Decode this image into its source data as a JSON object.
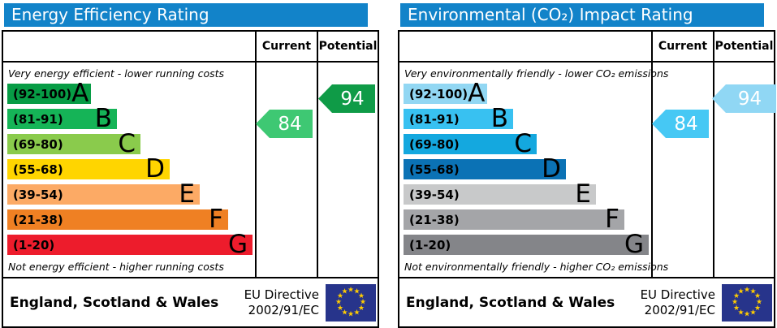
{
  "chart_data": [
    {
      "type": "bar",
      "variant": "epc-rating-scale",
      "title": "Energy Efficiency Rating",
      "header_bg": "#1283c9",
      "top_note": "Very energy efficient - lower running costs",
      "bottom_note": "Not energy efficient - higher running costs",
      "columns": [
        "Current",
        "Potential"
      ],
      "categories": [
        "A",
        "B",
        "C",
        "D",
        "E",
        "F",
        "G"
      ],
      "bands": [
        {
          "letter": "A",
          "range_label": "(92-100)",
          "min": 92,
          "max": 100,
          "color": "#079c45",
          "width_px": "103px"
        },
        {
          "letter": "B",
          "range_label": "(81-91)",
          "min": 81,
          "max": 91,
          "color": "#15b457",
          "width_px": "135px"
        },
        {
          "letter": "C",
          "range_label": "(69-80)",
          "min": 69,
          "max": 80,
          "color": "#8acb4c",
          "width_px": "164px"
        },
        {
          "letter": "D",
          "range_label": "(55-68)",
          "min": 55,
          "max": 68,
          "color": "#ffd500",
          "width_px": "200px"
        },
        {
          "letter": "E",
          "range_label": "(39-54)",
          "min": 39,
          "max": 54,
          "color": "#fcaa65",
          "width_px": "237px"
        },
        {
          "letter": "F",
          "range_label": "(21-38)",
          "min": 21,
          "max": 38,
          "color": "#ef8023",
          "width_px": "272px"
        },
        {
          "letter": "G",
          "range_label": "(1-20)",
          "min": 1,
          "max": 20,
          "color": "#ed1c2c",
          "width_px": "302px"
        }
      ],
      "current": {
        "value": 84,
        "band": "B",
        "row": 1,
        "color": "#3ec873"
      },
      "potential": {
        "value": 94,
        "band": "A",
        "row": 0,
        "color": "#0f9b47"
      },
      "footer": {
        "region": "England, Scotland & Wales",
        "directive_line1": "EU Directive",
        "directive_line2": "2002/91/EC",
        "flag": "eu-flag"
      }
    },
    {
      "type": "bar",
      "variant": "epc-rating-scale",
      "title": "Environmental (CO₂) Impact Rating",
      "header_bg": "#1283c9",
      "top_note": "Very environmentally friendly - lower CO₂ emissions",
      "bottom_note": "Not environmentally friendly - higher CO₂ emissions",
      "columns": [
        "Current",
        "Potential"
      ],
      "categories": [
        "A",
        "B",
        "C",
        "D",
        "E",
        "F",
        "G"
      ],
      "bands": [
        {
          "letter": "A",
          "range_label": "(92-100)",
          "min": 92,
          "max": 100,
          "color": "#92d7f3",
          "width_px": "103px"
        },
        {
          "letter": "B",
          "range_label": "(81-91)",
          "min": 81,
          "max": 91,
          "color": "#38c1f1",
          "width_px": "135px"
        },
        {
          "letter": "C",
          "range_label": "(69-80)",
          "min": 69,
          "max": 80,
          "color": "#14a8df",
          "width_px": "164px"
        },
        {
          "letter": "D",
          "range_label": "(55-68)",
          "min": 55,
          "max": 68,
          "color": "#0b72b5",
          "width_px": "200px"
        },
        {
          "letter": "E",
          "range_label": "(39-54)",
          "min": 39,
          "max": 54,
          "color": "#c8c9ca",
          "width_px": "237px"
        },
        {
          "letter": "F",
          "range_label": "(21-38)",
          "min": 21,
          "max": 38,
          "color": "#a4a5a8",
          "width_px": "272px"
        },
        {
          "letter": "G",
          "range_label": "(1-20)",
          "min": 1,
          "max": 20,
          "color": "#848589",
          "width_px": "302px"
        }
      ],
      "current": {
        "value": 84,
        "band": "B",
        "row": 1,
        "color": "#46c8f4"
      },
      "potential": {
        "value": 94,
        "band": "A",
        "row": 0,
        "color": "#90d7f4"
      },
      "footer": {
        "region": "England, Scotland & Wales",
        "directive_line1": "EU Directive",
        "directive_line2": "2002/91/EC",
        "flag": "eu-flag"
      }
    }
  ],
  "colors": {
    "header_text": "#ffffff",
    "eu_flag_bg": "#27348b",
    "eu_star": "#ffcc00",
    "border": "#000000"
  }
}
